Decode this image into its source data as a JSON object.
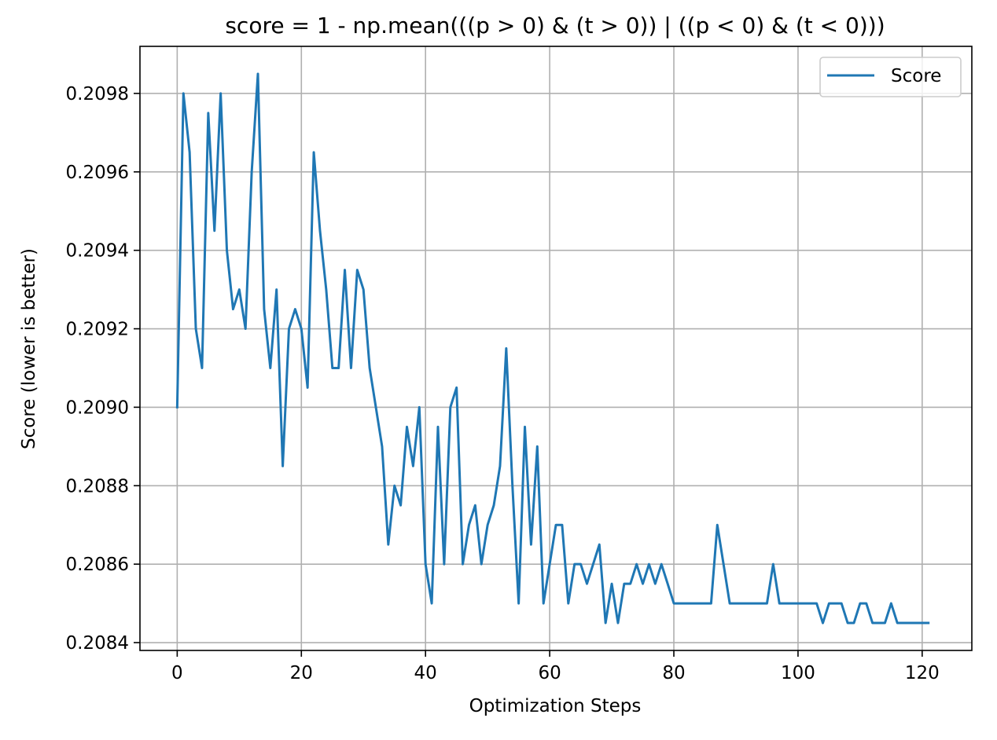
{
  "chart_data": {
    "type": "line",
    "title": "score = 1 - np.mean(((p > 0) & (t > 0)) | ((p < 0) & (t < 0)))",
    "xlabel": "Optimization Steps",
    "ylabel": "Score (lower is better)",
    "xlim": [
      -6,
      128
    ],
    "ylim": [
      0.20838,
      0.20992
    ],
    "xticks": [
      0,
      20,
      40,
      60,
      80,
      100,
      120
    ],
    "xtick_labels": [
      "0",
      "20",
      "40",
      "60",
      "80",
      "100",
      "120"
    ],
    "yticks": [
      0.2084,
      0.2086,
      0.2088,
      0.209,
      0.2092,
      0.2094,
      0.2096,
      0.2098
    ],
    "ytick_labels": [
      "0.2084",
      "0.2086",
      "0.2088",
      "0.2090",
      "0.2092",
      "0.2094",
      "0.2096",
      "0.2098"
    ],
    "grid": true,
    "legend_position": "top-right",
    "series": [
      {
        "name": "Score",
        "color": "#1f77b4",
        "x": [
          0,
          1,
          2,
          3,
          4,
          5,
          6,
          7,
          8,
          9,
          10,
          11,
          12,
          13,
          14,
          15,
          16,
          17,
          18,
          19,
          20,
          21,
          22,
          23,
          24,
          25,
          26,
          27,
          28,
          29,
          30,
          31,
          32,
          33,
          34,
          35,
          36,
          37,
          38,
          39,
          40,
          41,
          42,
          43,
          44,
          45,
          46,
          47,
          48,
          49,
          50,
          51,
          52,
          53,
          54,
          55,
          56,
          57,
          58,
          59,
          60,
          61,
          62,
          63,
          64,
          65,
          66,
          67,
          68,
          69,
          70,
          71,
          72,
          73,
          74,
          75,
          76,
          77,
          78,
          79,
          80,
          81,
          82,
          83,
          84,
          85,
          86,
          87,
          88,
          89,
          90,
          91,
          92,
          93,
          94,
          95,
          96,
          97,
          98,
          99,
          100,
          101,
          102,
          103,
          104,
          105,
          106,
          107,
          108,
          109,
          110,
          111,
          112,
          113,
          114,
          115,
          116,
          117,
          118,
          119,
          120,
          121
        ],
        "values": [
          0.209,
          0.2098,
          0.20965,
          0.2092,
          0.2091,
          0.20975,
          0.20945,
          0.2098,
          0.2094,
          0.20925,
          0.2093,
          0.2092,
          0.2096,
          0.20985,
          0.20925,
          0.2091,
          0.2093,
          0.20885,
          0.2092,
          0.20925,
          0.2092,
          0.20905,
          0.20965,
          0.20945,
          0.2093,
          0.2091,
          0.2091,
          0.20935,
          0.2091,
          0.20935,
          0.2093,
          0.2091,
          0.209,
          0.2089,
          0.20865,
          0.2088,
          0.20875,
          0.20895,
          0.20885,
          0.209,
          0.2086,
          0.2085,
          0.20895,
          0.2086,
          0.209,
          0.20905,
          0.2086,
          0.2087,
          0.20875,
          0.2086,
          0.2087,
          0.20875,
          0.20885,
          0.20915,
          0.2088,
          0.2085,
          0.20895,
          0.20865,
          0.2089,
          0.2085,
          0.2086,
          0.2087,
          0.2087,
          0.2085,
          0.2086,
          0.2086,
          0.20855,
          0.2086,
          0.20865,
          0.20845,
          0.20855,
          0.20845,
          0.20855,
          0.20855,
          0.2086,
          0.20855,
          0.2086,
          0.20855,
          0.2086,
          0.20855,
          0.2085,
          0.2085,
          0.2085,
          0.2085,
          0.2085,
          0.2085,
          0.2085,
          0.2087,
          0.2086,
          0.2085,
          0.2085,
          0.2085,
          0.2085,
          0.2085,
          0.2085,
          0.2085,
          0.2086,
          0.2085,
          0.2085,
          0.2085,
          0.2085,
          0.2085,
          0.2085,
          0.2085,
          0.20845,
          0.2085,
          0.2085,
          0.2085,
          0.20845,
          0.20845,
          0.2085,
          0.2085,
          0.20845,
          0.20845,
          0.20845,
          0.2085,
          0.20845,
          0.20845,
          0.20845,
          0.20845,
          0.20845,
          0.20845
        ]
      }
    ]
  }
}
